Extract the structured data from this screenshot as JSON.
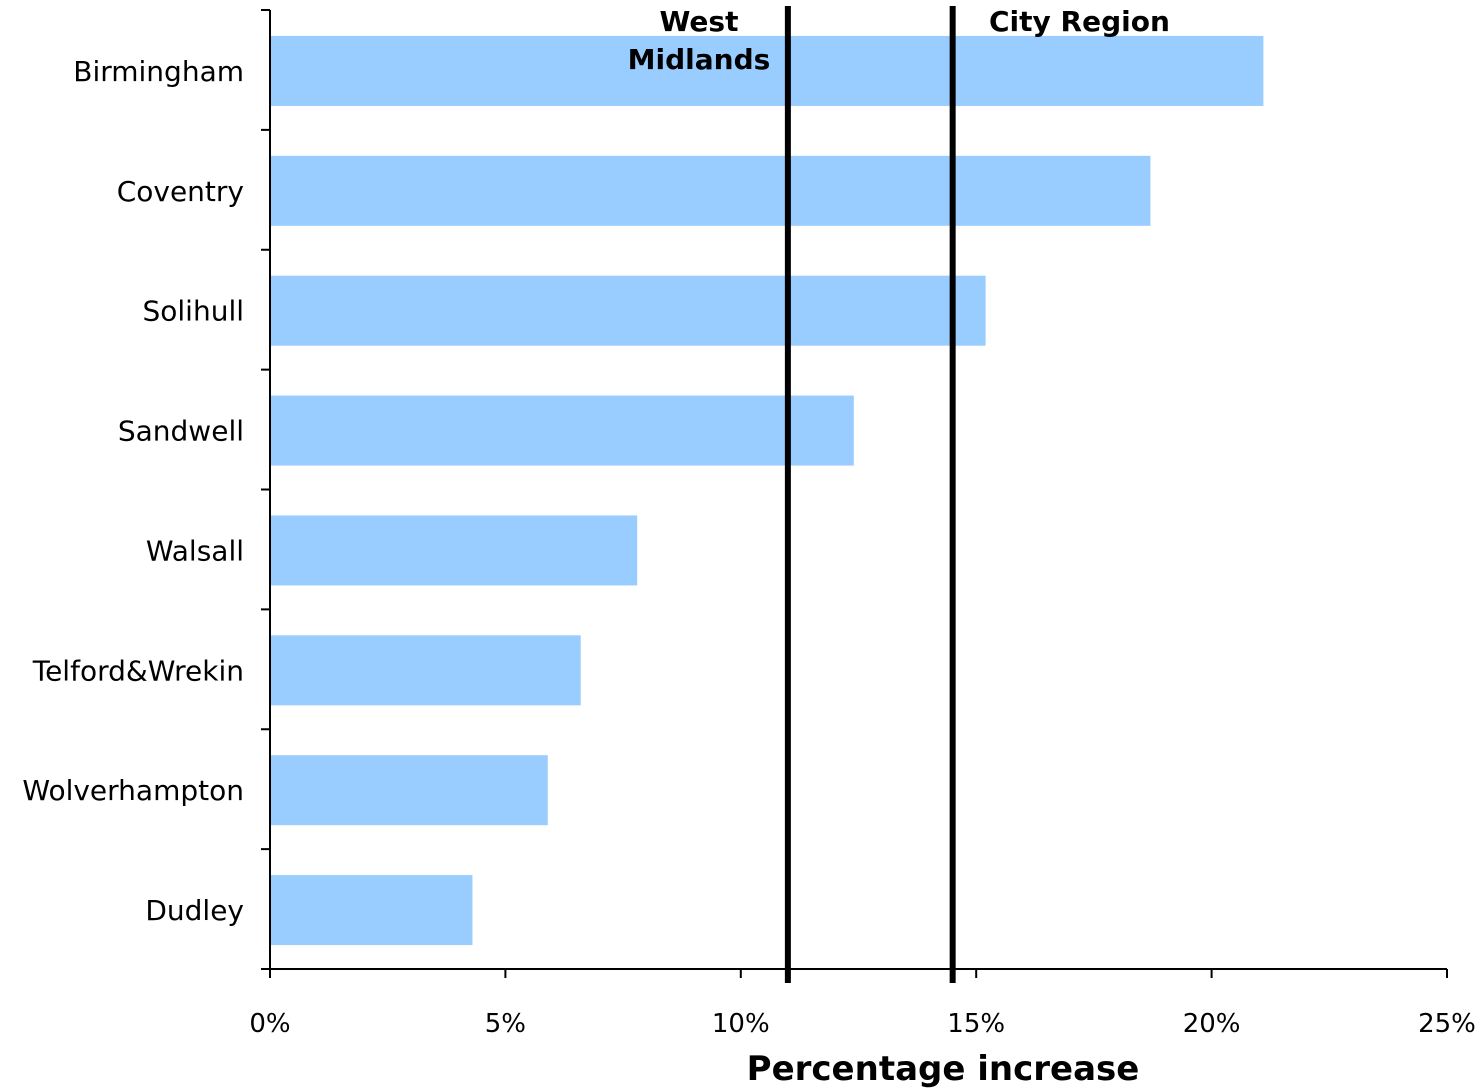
{
  "chart_data": {
    "type": "bar",
    "orientation": "horizontal",
    "categories": [
      "Birmingham",
      "Coventry",
      "Solihull",
      "Sandwell",
      "Walsall",
      "Telford&Wrekin",
      "Wolverhampton",
      "Dudley"
    ],
    "values": [
      21.1,
      18.7,
      15.2,
      12.4,
      7.8,
      6.6,
      5.9,
      4.3
    ],
    "xlabel": "Percentage increase",
    "ylabel": "",
    "xlim": [
      0,
      25
    ],
    "xticks": [
      "0%",
      "5%",
      "10%",
      "15%",
      "20%",
      "25%"
    ],
    "tick_values": [
      0,
      5,
      10,
      15,
      20,
      25
    ],
    "reference_lines": [
      {
        "label_lines": [
          "West",
          "Midlands"
        ],
        "value": 11.0
      },
      {
        "label_lines": [
          "City Region"
        ],
        "value": 14.5
      }
    ],
    "grid": false,
    "legend": "none",
    "bar_color": "#99ccff",
    "line_color": "#000000"
  }
}
